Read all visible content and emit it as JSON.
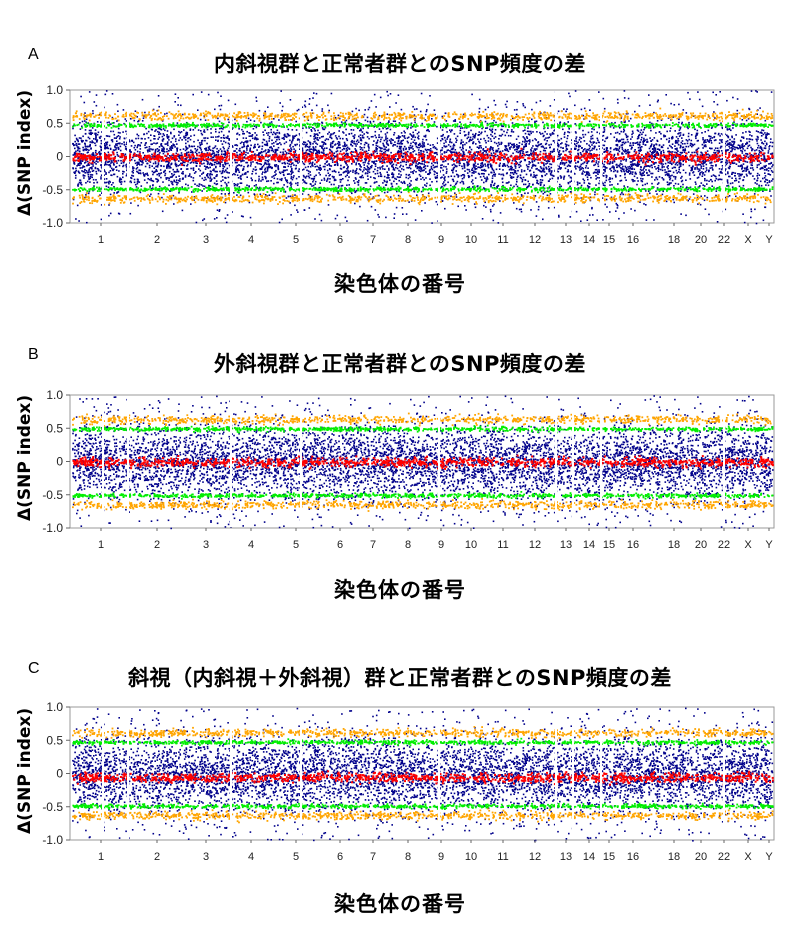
{
  "chart_data": [
    {
      "panel_letter": "A",
      "title": "内斜視群と正常者群とのSNP頻度の差",
      "ylabel": "Δ(SNP index)",
      "xlabel": "染色体の番号",
      "type": "scatter",
      "ylim": [
        -1.0,
        1.0
      ],
      "yticks": [
        "1.0",
        "0.5",
        "0",
        "-0.5",
        "-1.0"
      ],
      "ytick_values": [
        1.0,
        0.5,
        0,
        -0.5,
        -1.0
      ],
      "categories": [
        "1",
        "2",
        "3",
        "4",
        "5",
        "6",
        "7",
        "8",
        "9",
        "10",
        "11",
        "12",
        "13",
        "14",
        "15",
        "16",
        "18",
        "20",
        "22",
        "X",
        "Y"
      ],
      "series": [
        {
          "role": "snp_points",
          "color": "#00008b"
        },
        {
          "role": "threshold_95",
          "color": "#00ee00",
          "values": [
            0.48,
            -0.48
          ]
        },
        {
          "role": "threshold_99",
          "color": "#ffa500",
          "values": [
            0.62,
            -0.62
          ]
        },
        {
          "role": "sliding_mean",
          "color": "#ff0000",
          "values": [
            0.0
          ]
        }
      ]
    },
    {
      "panel_letter": "B",
      "title": "外斜視群と正常者群とのSNP頻度の差",
      "ylabel": "Δ(SNP index)",
      "xlabel": "染色体の番号",
      "type": "scatter",
      "ylim": [
        -1.0,
        1.0
      ],
      "yticks": [
        "1.0",
        "0.5",
        "0",
        "-0.5",
        "-1.0"
      ],
      "ytick_values": [
        1.0,
        0.5,
        0,
        -0.5,
        -1.0
      ],
      "categories": [
        "1",
        "2",
        "3",
        "4",
        "5",
        "6",
        "7",
        "8",
        "9",
        "10",
        "11",
        "12",
        "13",
        "14",
        "15",
        "16",
        "18",
        "20",
        "22",
        "X",
        "Y"
      ],
      "series": [
        {
          "role": "snp_points",
          "color": "#00008b"
        },
        {
          "role": "threshold_95",
          "color": "#00ee00",
          "values": [
            0.5,
            -0.5
          ]
        },
        {
          "role": "threshold_99",
          "color": "#ffa500",
          "values": [
            0.64,
            -0.64
          ]
        },
        {
          "role": "sliding_mean",
          "color": "#ff0000",
          "values": [
            0.0
          ]
        }
      ]
    },
    {
      "panel_letter": "C",
      "title": "斜視（内斜視＋外斜視）群と正常者群とのSNP頻度の差",
      "ylabel": "Δ(SNP index)",
      "xlabel": "染色体の番号",
      "type": "scatter",
      "ylim": [
        -1.0,
        1.0
      ],
      "yticks": [
        "1.0",
        "0.5",
        "0",
        "-0.5",
        "-1.0"
      ],
      "ytick_values": [
        1.0,
        0.5,
        0,
        -0.5,
        -1.0
      ],
      "categories": [
        "1",
        "2",
        "3",
        "4",
        "5",
        "6",
        "7",
        "8",
        "9",
        "10",
        "11",
        "12",
        "13",
        "14",
        "15",
        "16",
        "18",
        "20",
        "22",
        "X",
        "Y"
      ],
      "series": [
        {
          "role": "snp_points",
          "color": "#00008b"
        },
        {
          "role": "threshold_95",
          "color": "#00ee00",
          "values": [
            0.48,
            -0.48
          ]
        },
        {
          "role": "threshold_99",
          "color": "#ffa500",
          "values": [
            0.62,
            -0.62
          ]
        },
        {
          "role": "sliding_mean",
          "color": "#ff0000",
          "values": [
            -0.05
          ]
        }
      ]
    }
  ]
}
